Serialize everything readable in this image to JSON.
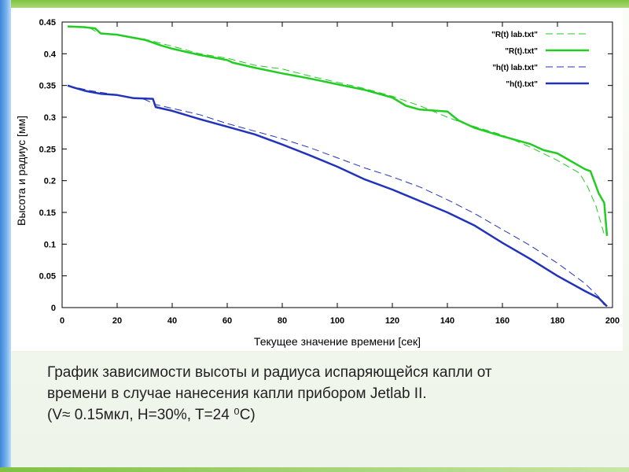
{
  "caption": {
    "line1": "График зависимости высоты и радиуса испаряющейся капли от",
    "line2": "времени в случае нанесения капли прибором Jetlab II.",
    "line3": "(V≈ 0.15мкл, H=30%, T=24 ⁰C)"
  },
  "colors": {
    "green": "#22cc22",
    "blue": "#2233bb",
    "accent_left": "#3d86d6",
    "accent_top": "#7fc242"
  },
  "chart_data": {
    "type": "line",
    "title": "",
    "xlabel": "Текущее значение времени [сек]",
    "ylabel": "Высота и радиус [мм]",
    "xlim": [
      0,
      200
    ],
    "ylim": [
      0,
      0.45
    ],
    "xticks": [
      "0",
      "20",
      "40",
      "60",
      "80",
      "100",
      "120",
      "140",
      "160",
      "180",
      "200"
    ],
    "yticks": [
      "0",
      "0.05",
      "0.1",
      "0.15",
      "0.2",
      "0.25",
      "0.3",
      "0.35",
      "0.4",
      "0.45"
    ],
    "grid": false,
    "legend_position": "top-right",
    "series": [
      {
        "name": "\"R(t) lab.txt\"",
        "color": "#22cc22",
        "dash": true,
        "x": [
          2,
          10,
          13,
          20,
          30,
          40,
          50,
          60,
          70,
          80,
          90,
          100,
          110,
          120,
          130,
          140,
          145,
          150,
          160,
          170,
          180,
          188,
          191,
          194,
          197
        ],
        "y": [
          0.443,
          0.441,
          0.433,
          0.43,
          0.423,
          0.412,
          0.4,
          0.393,
          0.382,
          0.376,
          0.365,
          0.355,
          0.345,
          0.333,
          0.318,
          0.3,
          0.292,
          0.285,
          0.272,
          0.253,
          0.232,
          0.212,
          0.19,
          0.16,
          0.115
        ]
      },
      {
        "name": "\"R(t).txt\"",
        "color": "#22cc22",
        "dash": false,
        "x": [
          2,
          8,
          12,
          14,
          20,
          30,
          36,
          40,
          50,
          60,
          62,
          70,
          80,
          90,
          100,
          110,
          120,
          125,
          130,
          140,
          144,
          150,
          160,
          170,
          175,
          180,
          190,
          192,
          195,
          197,
          198
        ],
        "y": [
          0.443,
          0.442,
          0.44,
          0.432,
          0.43,
          0.422,
          0.413,
          0.408,
          0.398,
          0.39,
          0.386,
          0.378,
          0.369,
          0.361,
          0.352,
          0.343,
          0.331,
          0.318,
          0.312,
          0.309,
          0.295,
          0.283,
          0.27,
          0.258,
          0.248,
          0.243,
          0.218,
          0.215,
          0.18,
          0.165,
          0.113
        ]
      },
      {
        "name": "\"h(t) lab.txt\"",
        "color": "#2233bb",
        "dash": true,
        "x": [
          2,
          10,
          20,
          30,
          34,
          40,
          50,
          60,
          70,
          80,
          90,
          100,
          110,
          120,
          130,
          140,
          150,
          160,
          170,
          180,
          190,
          195,
          197
        ],
        "y": [
          0.35,
          0.342,
          0.335,
          0.328,
          0.32,
          0.314,
          0.304,
          0.29,
          0.278,
          0.266,
          0.252,
          0.236,
          0.22,
          0.206,
          0.19,
          0.17,
          0.148,
          0.123,
          0.098,
          0.07,
          0.038,
          0.017,
          0.004
        ]
      },
      {
        "name": "\"h(t).txt\"",
        "color": "#2233bb",
        "dash": false,
        "x": [
          2,
          4,
          8,
          10,
          14,
          20,
          26,
          33,
          34,
          40,
          50,
          60,
          70,
          80,
          90,
          100,
          110,
          120,
          130,
          140,
          150,
          160,
          170,
          180,
          190,
          195,
          198
        ],
        "y": [
          0.35,
          0.347,
          0.342,
          0.34,
          0.337,
          0.335,
          0.33,
          0.329,
          0.316,
          0.31,
          0.297,
          0.285,
          0.273,
          0.257,
          0.24,
          0.222,
          0.202,
          0.186,
          0.168,
          0.15,
          0.129,
          0.102,
          0.077,
          0.05,
          0.026,
          0.015,
          0.002
        ]
      }
    ]
  }
}
